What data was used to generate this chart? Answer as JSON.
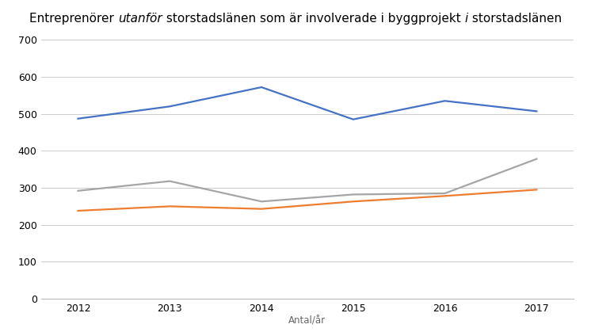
{
  "years": [
    2012,
    2013,
    2014,
    2015,
    2016,
    2017
  ],
  "blue_line": [
    487,
    520,
    572,
    485,
    535,
    507
  ],
  "gray_line": [
    292,
    318,
    263,
    282,
    285,
    378
  ],
  "orange_line": [
    238,
    250,
    243,
    263,
    278,
    295
  ],
  "blue_color": "#4472C4",
  "gray_color": "#A5A5A5",
  "orange_color": "#ED7D31",
  "title_parts": [
    [
      "Entreprenörer ",
      false
    ],
    [
      "utanför",
      true
    ],
    [
      " storstadslänen som är involverade i byggprojekt ",
      false
    ],
    [
      "i",
      true
    ],
    [
      " storstadslänen",
      false
    ]
  ],
  "xlabel": "Antal/år",
  "ylim": [
    0,
    700
  ],
  "yticks": [
    0,
    100,
    200,
    300,
    400,
    500,
    600,
    700
  ],
  "xlim": [
    2011.6,
    2017.4
  ],
  "background_color": "#FFFFFF",
  "grid_color": "#CCCCCC",
  "line_width": 1.6,
  "title_fontsize": 11,
  "tick_fontsize": 9,
  "xlabel_fontsize": 8.5
}
